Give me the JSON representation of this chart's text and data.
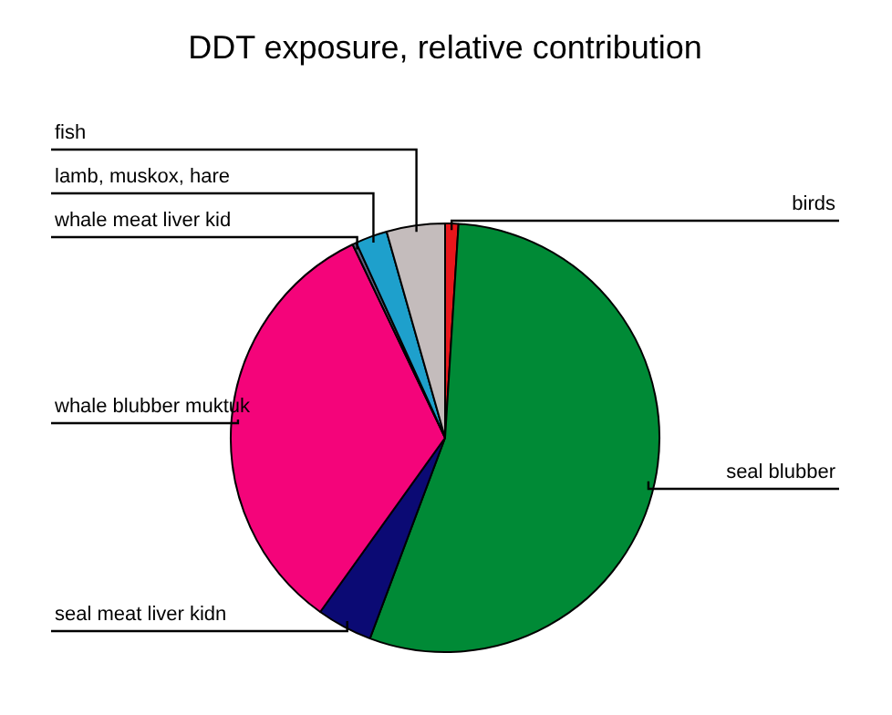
{
  "chart_data": {
    "type": "pie",
    "title": "DDT exposure, relative contribution",
    "categories": [
      "birds",
      "seal blubber",
      "seal meat liver kidn",
      "whale blubber muktuk",
      "whale meat liver kid",
      "lamb, muskox, hare",
      "fish"
    ],
    "values": [
      1,
      54.7,
      4.2,
      33,
      0.3,
      2.4,
      4.4
    ],
    "colors": [
      "#e8161b",
      "#008a36",
      "#0b0a74",
      "#f4047a",
      "#606080",
      "#1ea0cc",
      "#c4bcbc"
    ],
    "legend": false
  }
}
